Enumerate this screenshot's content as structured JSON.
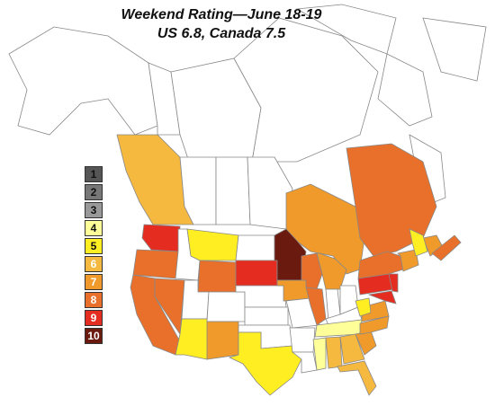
{
  "title": "Weekend Rating—June 18-19",
  "subtitle": "US 6.8, Canada 7.5",
  "legend": [
    {
      "label": "1",
      "color": "#555555",
      "text_color": "#111111"
    },
    {
      "label": "2",
      "color": "#777777",
      "text_color": "#111111"
    },
    {
      "label": "3",
      "color": "#999999",
      "text_color": "#111111"
    },
    {
      "label": "4",
      "color": "#ffff99",
      "text_color": "#111111"
    },
    {
      "label": "5",
      "color": "#ffee22",
      "text_color": "#111111"
    },
    {
      "label": "6",
      "color": "#f5b940",
      "text_color": "#ffffff"
    },
    {
      "label": "7",
      "color": "#ef9a2a",
      "text_color": "#ffffff"
    },
    {
      "label": "8",
      "color": "#e8702a",
      "text_color": "#ffffff"
    },
    {
      "label": "9",
      "color": "#e42d20",
      "text_color": "#ffffff"
    },
    {
      "label": "10",
      "color": "#6b1a10",
      "text_color": "#ffffff"
    }
  ],
  "region_ratings": {
    "british-columbia": 6,
    "alberta": 0,
    "saskatchewan": 0,
    "manitoba": 0,
    "ontario": 7,
    "quebec": 8,
    "new-brunswick": 7,
    "nova-scotia": 8,
    "washington": 9,
    "oregon": 8,
    "california": 8,
    "nevada": 8,
    "idaho": 0,
    "montana": 5,
    "wyoming": 8,
    "utah": 0,
    "arizona": 5,
    "colorado": 0,
    "new-mexico": 7,
    "texas": 5,
    "north-dakota": 0,
    "south-dakota": 9,
    "nebraska": 0,
    "kansas": 0,
    "oklahoma": 0,
    "minnesota": 10,
    "iowa": 7,
    "missouri": 0,
    "arkansas": 0,
    "louisiana": 0,
    "wisconsin": 8,
    "illinois": 8,
    "michigan": 7,
    "indiana": 0,
    "ohio": 0,
    "kentucky": 0,
    "tennessee": 4,
    "mississippi": 4,
    "alabama": 6,
    "georgia": 6,
    "florida": 6,
    "south-carolina": 7,
    "north-carolina": 7,
    "virginia": 7,
    "west-virginia": 5,
    "pennsylvania": 9,
    "new-york": 8,
    "new-jersey": 9,
    "maryland": 9,
    "new-england": 7,
    "maine": 5
  }
}
